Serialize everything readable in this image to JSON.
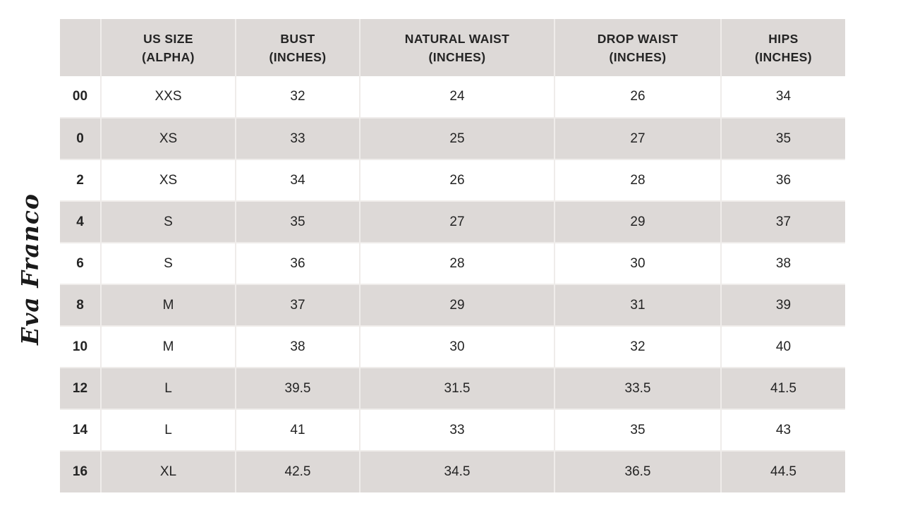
{
  "logo": {
    "text": "Eva Franco"
  },
  "colors": {
    "background": "#ffffff",
    "header_bg": "#ddd9d7",
    "row_alt_bg": "#ddd9d7",
    "row_bg": "#ffffff",
    "cell_border": "#efecea",
    "text": "#242424",
    "logo_text": "#1a1a1a"
  },
  "chart_data": {
    "type": "table",
    "legend_position": "none",
    "columns": [
      {
        "line1": "",
        "line2": ""
      },
      {
        "line1": "US SIZE",
        "line2": "(ALPHA)"
      },
      {
        "line1": "BUST",
        "line2": "(INCHES)"
      },
      {
        "line1": "NATURAL WAIST",
        "line2": "(INCHES)"
      },
      {
        "line1": "DROP WAIST",
        "line2": "(INCHES)"
      },
      {
        "line1": "HIPS",
        "line2": "(INCHES)"
      }
    ],
    "rows": [
      [
        "00",
        "XXS",
        "32",
        "24",
        "26",
        "34"
      ],
      [
        "0",
        "XS",
        "33",
        "25",
        "27",
        "35"
      ],
      [
        "2",
        "XS",
        "34",
        "26",
        "28",
        "36"
      ],
      [
        "4",
        "S",
        "35",
        "27",
        "29",
        "37"
      ],
      [
        "6",
        "S",
        "36",
        "28",
        "30",
        "38"
      ],
      [
        "8",
        "M",
        "37",
        "29",
        "31",
        "39"
      ],
      [
        "10",
        "M",
        "38",
        "30",
        "32",
        "40"
      ],
      [
        "12",
        "L",
        "39.5",
        "31.5",
        "33.5",
        "41.5"
      ],
      [
        "14",
        "L",
        "41",
        "33",
        "35",
        "43"
      ],
      [
        "16",
        "XL",
        "42.5",
        "34.5",
        "36.5",
        "44.5"
      ]
    ]
  }
}
